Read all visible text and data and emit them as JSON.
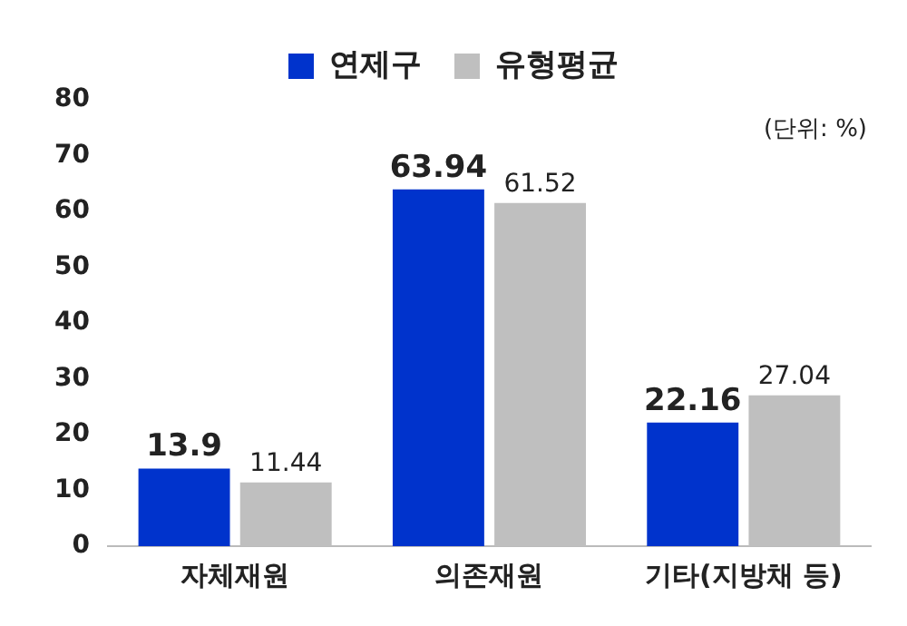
{
  "chart_data": {
    "type": "bar",
    "categories": [
      "자체재원",
      "의존재원",
      "기타(지방채 등)"
    ],
    "series": [
      {
        "name": "연제구",
        "color": "#0033cc",
        "values": [
          13.9,
          63.94,
          22.16
        ]
      },
      {
        "name": "유형평균",
        "color": "#bfbfbf",
        "values": [
          11.44,
          61.52,
          27.04
        ]
      }
    ],
    "ylim": [
      0,
      80
    ],
    "yticks": [
      0,
      10,
      20,
      30,
      40,
      50,
      60,
      70,
      80
    ],
    "grid": false,
    "legend": "top",
    "data_labels": true,
    "annotations": [
      "(단위: %)"
    ]
  }
}
